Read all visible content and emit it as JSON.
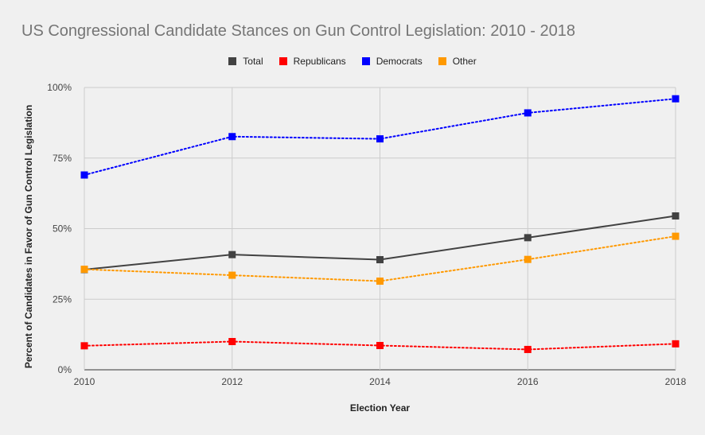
{
  "chart_data": {
    "type": "line",
    "title": "US Congressional Candidate Stances on Gun Control Legislation: 2010 - 2018",
    "xlabel": "Election Year",
    "ylabel": "Percent of Candidates in Favor of Gun Control Legislation",
    "x": [
      2010,
      2012,
      2014,
      2016,
      2018
    ],
    "x_tick_labels": [
      "2010",
      "2012",
      "2014",
      "2016",
      "2018"
    ],
    "ylim": [
      0,
      100
    ],
    "y_ticks": [
      0,
      25,
      50,
      75,
      100
    ],
    "y_tick_labels": [
      "0%",
      "25%",
      "50%",
      "75%",
      "100%"
    ],
    "grid": true,
    "legend_position": "top",
    "series": [
      {
        "name": "Total",
        "color": "#424242",
        "style": "solid",
        "values": [
          35.5,
          40.8,
          39.0,
          46.8,
          54.5
        ]
      },
      {
        "name": "Republicans",
        "color": "#ff0000",
        "style": "dotted",
        "values": [
          8.5,
          10.0,
          8.6,
          7.2,
          9.2
        ]
      },
      {
        "name": "Democrats",
        "color": "#0000ff",
        "style": "dotted",
        "values": [
          69.0,
          82.6,
          81.8,
          91.0,
          96.0
        ]
      },
      {
        "name": "Other",
        "color": "#ff9900",
        "style": "dotted",
        "values": [
          35.6,
          33.5,
          31.4,
          39.1,
          47.3
        ]
      }
    ]
  }
}
